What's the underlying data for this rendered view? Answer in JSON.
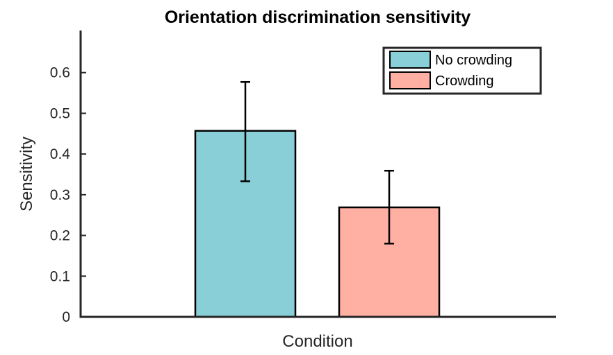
{
  "chart_data": {
    "type": "bar",
    "title": "Orientation discrimination sensitivity",
    "xlabel": "Condition",
    "ylabel": "Sensitivity",
    "ylim": [
      0,
      0.7
    ],
    "yticks": [
      0,
      0.1,
      0.2,
      0.3,
      0.4,
      0.5,
      0.6
    ],
    "ytick_labels": [
      "0",
      "0.1",
      "0.2",
      "0.3",
      "0.4",
      "0.5",
      "0.6"
    ],
    "grid": false,
    "legend_position": "top-right",
    "series": [
      {
        "name": "No crowding",
        "value": 0.457,
        "err_low": 0.333,
        "err_high": 0.577,
        "color": "#88cfd8"
      },
      {
        "name": "Crowding",
        "value": 0.269,
        "err_low": 0.18,
        "err_high": 0.359,
        "color": "#ffb0a3"
      }
    ]
  }
}
